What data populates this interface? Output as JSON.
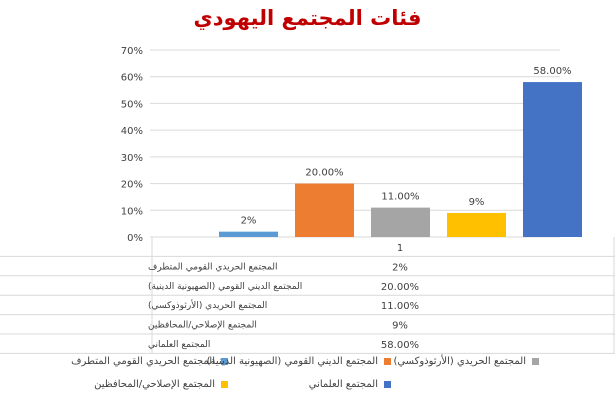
{
  "chart_data": {
    "type": "bar",
    "title": "فئات المجتمع اليهودي",
    "categories": [
      "1"
    ],
    "ylim": [
      0,
      70
    ],
    "y_ticks": [
      "0%",
      "10%",
      "20%",
      "30%",
      "40%",
      "50%",
      "60%",
      "70%"
    ],
    "grid": true,
    "legend_position": "bottom",
    "series": [
      {
        "name": "المجتمع الحريدي القومي المتطرف",
        "value": 2,
        "label": "2%",
        "color": "#5b9bd5"
      },
      {
        "name": "المجتمع الديني القومي (الصهيونية الدينية)",
        "value": 20,
        "label": "20.00%",
        "color": "#ed7d31"
      },
      {
        "name": "المجتمع الحريدي (الأرثوذوكسي)",
        "value": 11,
        "label": "11.00%",
        "color": "#a5a5a5"
      },
      {
        "name": "المجتمع الإصلاحي/المحافظين",
        "value": 9,
        "label": "9%",
        "color": "#ffc000"
      },
      {
        "name": "المجتمع العلماني",
        "value": 58,
        "label": "58.00%",
        "color": "#4472c4"
      }
    ]
  }
}
